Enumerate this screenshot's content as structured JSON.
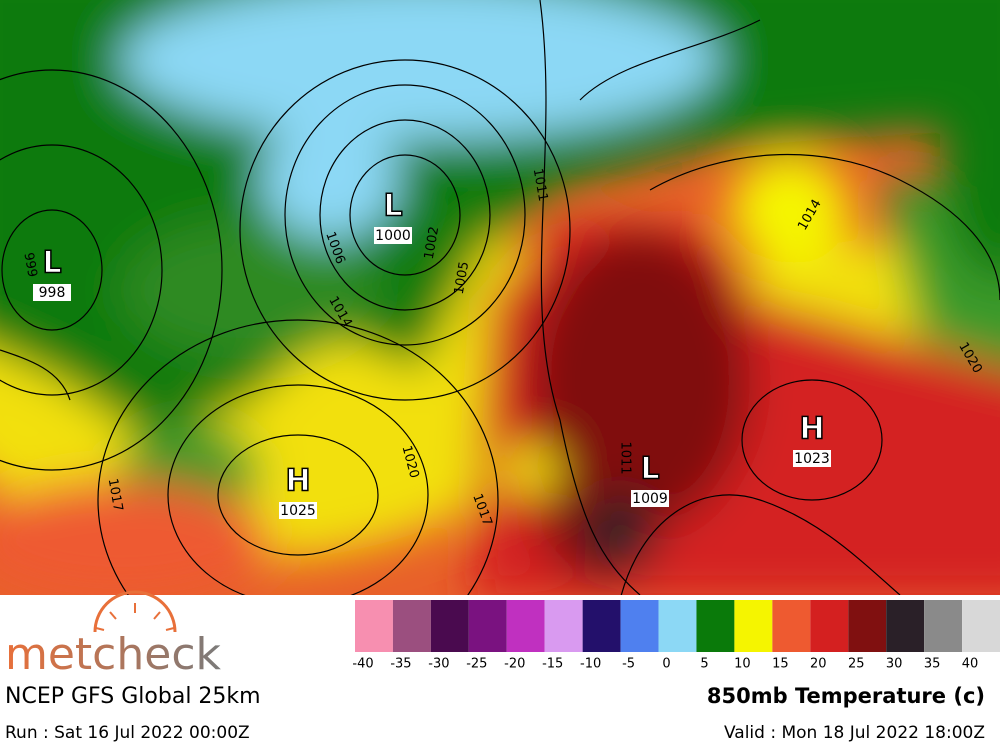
{
  "map": {
    "pressure_centers": [
      {
        "symbol": "L",
        "value": 998
      },
      {
        "symbol": "L",
        "value": 1000
      },
      {
        "symbol": "H",
        "value": 1025
      },
      {
        "symbol": "L",
        "value": 1009
      },
      {
        "symbol": "H",
        "value": 1023
      }
    ],
    "isobar_labels": [
      999,
      1006,
      1002,
      1005,
      1011,
      1014,
      1014,
      1020,
      1017,
      1017,
      1020,
      1011
    ]
  },
  "legend": {
    "ticks": [
      -40,
      -35,
      -30,
      -25,
      -20,
      -15,
      -10,
      -5,
      0,
      5,
      10,
      15,
      20,
      25,
      30,
      35,
      40
    ],
    "colors": [
      "#f78fb0",
      "#9b4f7f",
      "#4a0a4f",
      "#7a1280",
      "#c030c0",
      "#d99af0",
      "#23106b",
      "#4f80ef",
      "#8cd8f5",
      "#0a7a0a",
      "#f5f500",
      "#ee5a30",
      "#d42020",
      "#801010",
      "#2a2028",
      "#8a8a8a",
      "#d8d8d8"
    ]
  },
  "logo": "metcheck",
  "model": "NCEP GFS Global 25km",
  "parameter": "850mb Temperature (c)",
  "run": "Run : Sat 16 Jul 2022 00:00Z",
  "valid": "Valid : Mon 18 Jul 2022 18:00Z"
}
